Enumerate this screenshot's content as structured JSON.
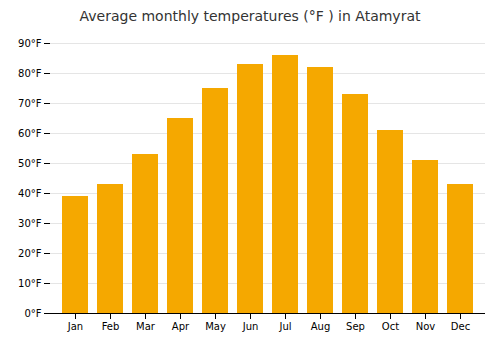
{
  "chart_data": {
    "type": "bar",
    "title": "Average monthly temperatures (°F ) in Atamyrat",
    "categories": [
      "Jan",
      "Feb",
      "Mar",
      "Apr",
      "May",
      "Jun",
      "Jul",
      "Aug",
      "Sep",
      "Oct",
      "Nov",
      "Dec"
    ],
    "values": [
      39,
      43,
      53,
      65,
      75,
      83,
      86,
      82,
      73,
      61,
      51,
      43
    ],
    "color": "#F5A800",
    "ylim": [
      0,
      90
    ],
    "yticks": [
      {
        "value": 0,
        "label": "0°F"
      },
      {
        "value": 10,
        "label": "10°F"
      },
      {
        "value": 20,
        "label": "20°F"
      },
      {
        "value": 30,
        "label": "30°F"
      },
      {
        "value": 40,
        "label": "40°F"
      },
      {
        "value": 50,
        "label": "50°F"
      },
      {
        "value": 60,
        "label": "60°F"
      },
      {
        "value": 70,
        "label": "70°F"
      },
      {
        "value": 80,
        "label": "80°F"
      },
      {
        "value": 90,
        "label": "90°F"
      }
    ],
    "grid": true
  }
}
